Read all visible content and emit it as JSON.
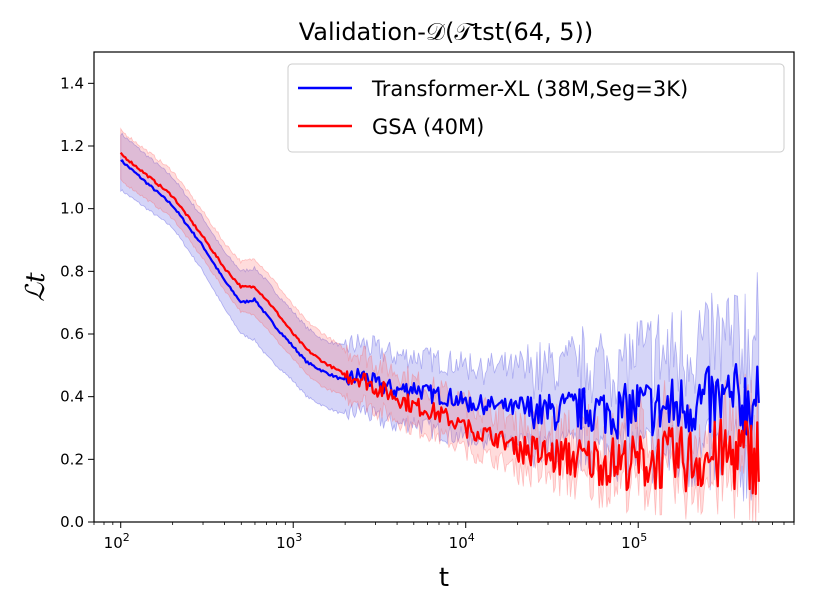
{
  "chart_data": {
    "type": "line",
    "title": "Validation-𝒟(𝒯tst(64, 5))",
    "xlabel": "t",
    "ylabel": "ℒt",
    "xscale": "log",
    "xlim": [
      70,
      800000
    ],
    "ylim": [
      0.0,
      1.5
    ],
    "y_ticks": [
      "0.0",
      "0.2",
      "0.4",
      "0.6",
      "0.8",
      "1.0",
      "1.2",
      "1.4"
    ],
    "x_ticks": [
      {
        "base": "10",
        "exp": "2"
      },
      {
        "base": "10",
        "exp": "3"
      },
      {
        "base": "10",
        "exp": "4"
      },
      {
        "base": "10",
        "exp": "5"
      }
    ],
    "grid": false,
    "legend_position": "top-right",
    "series": [
      {
        "name": "Transformer-XL (38M,Seg=3K)",
        "color": "#0000ff",
        "band_color": "#4040e0",
        "x": [
          100,
          200,
          300,
          400,
          500,
          600,
          700,
          800,
          1000,
          1200,
          1500,
          2000,
          2500,
          3000,
          4000,
          5000,
          6000,
          8000,
          10000,
          15000,
          20000,
          30000,
          50000,
          80000,
          100000,
          150000,
          200000,
          300000,
          500000
        ],
        "mean": [
          1.155,
          1.01,
          0.88,
          0.77,
          0.7,
          0.71,
          0.66,
          0.62,
          0.56,
          0.51,
          0.48,
          0.45,
          0.47,
          0.44,
          0.42,
          0.43,
          0.41,
          0.4,
          0.38,
          0.37,
          0.36,
          0.35,
          0.36,
          0.35,
          0.37,
          0.36,
          0.38,
          0.38,
          0.39
        ],
        "lower": [
          1.06,
          0.94,
          0.8,
          0.68,
          0.6,
          0.58,
          0.53,
          0.5,
          0.45,
          0.4,
          0.37,
          0.34,
          0.36,
          0.33,
          0.31,
          0.32,
          0.3,
          0.28,
          0.27,
          0.26,
          0.24,
          0.23,
          0.23,
          0.22,
          0.23,
          0.21,
          0.21,
          0.2,
          0.19
        ],
        "upper": [
          1.24,
          1.1,
          0.97,
          0.86,
          0.8,
          0.81,
          0.77,
          0.73,
          0.67,
          0.62,
          0.58,
          0.56,
          0.57,
          0.55,
          0.53,
          0.53,
          0.52,
          0.51,
          0.5,
          0.49,
          0.49,
          0.49,
          0.51,
          0.5,
          0.53,
          0.53,
          0.56,
          0.57,
          0.59
        ]
      },
      {
        "name": "GSA (40M)",
        "color": "#ff0000",
        "band_color": "#ff6060",
        "x": [
          100,
          200,
          300,
          400,
          500,
          600,
          700,
          800,
          1000,
          1200,
          1500,
          2000,
          2500,
          3000,
          4000,
          5000,
          6000,
          8000,
          10000,
          15000,
          20000,
          30000,
          50000,
          80000,
          100000,
          150000,
          200000,
          300000,
          500000
        ],
        "mean": [
          1.175,
          1.04,
          0.91,
          0.81,
          0.75,
          0.75,
          0.71,
          0.67,
          0.6,
          0.55,
          0.51,
          0.47,
          0.46,
          0.43,
          0.4,
          0.37,
          0.36,
          0.33,
          0.3,
          0.27,
          0.24,
          0.21,
          0.2,
          0.19,
          0.19,
          0.2,
          0.2,
          0.21,
          0.22
        ],
        "lower": [
          1.09,
          0.97,
          0.84,
          0.74,
          0.67,
          0.66,
          0.62,
          0.58,
          0.52,
          0.47,
          0.43,
          0.4,
          0.39,
          0.36,
          0.33,
          0.3,
          0.29,
          0.26,
          0.23,
          0.2,
          0.17,
          0.15,
          0.13,
          0.13,
          0.12,
          0.12,
          0.12,
          0.13,
          0.13
        ],
        "upper": [
          1.25,
          1.12,
          0.99,
          0.89,
          0.83,
          0.84,
          0.8,
          0.76,
          0.69,
          0.64,
          0.6,
          0.55,
          0.54,
          0.51,
          0.48,
          0.45,
          0.43,
          0.41,
          0.38,
          0.35,
          0.32,
          0.29,
          0.28,
          0.27,
          0.27,
          0.28,
          0.28,
          0.29,
          0.31
        ]
      }
    ]
  }
}
